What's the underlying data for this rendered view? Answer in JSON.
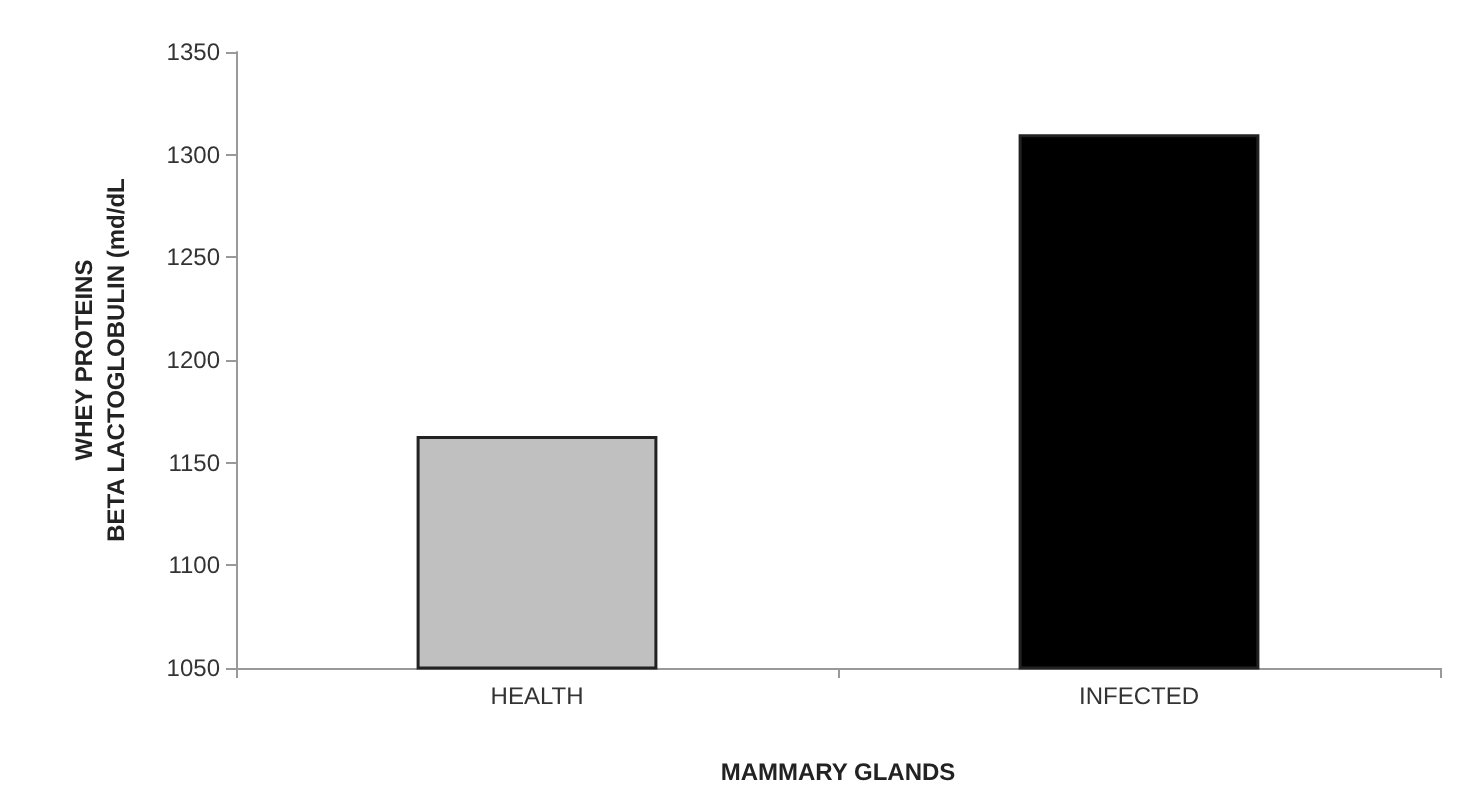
{
  "chart_data": {
    "type": "bar",
    "xlabel": "MAMMARY GLANDS",
    "ylabel": "WHEY PROTEINS\nBETA LACTOGLOBULIN (md/dL",
    "categories": [
      "HEALTH",
      "INFECTED"
    ],
    "values": [
      1163,
      1310
    ],
    "colors": [
      "#c0c0c0",
      "#000000"
    ],
    "ylim": [
      1050,
      1350
    ],
    "yticks": [
      1050,
      1100,
      1150,
      1200,
      1250,
      1300,
      1350
    ],
    "grid": false
  }
}
